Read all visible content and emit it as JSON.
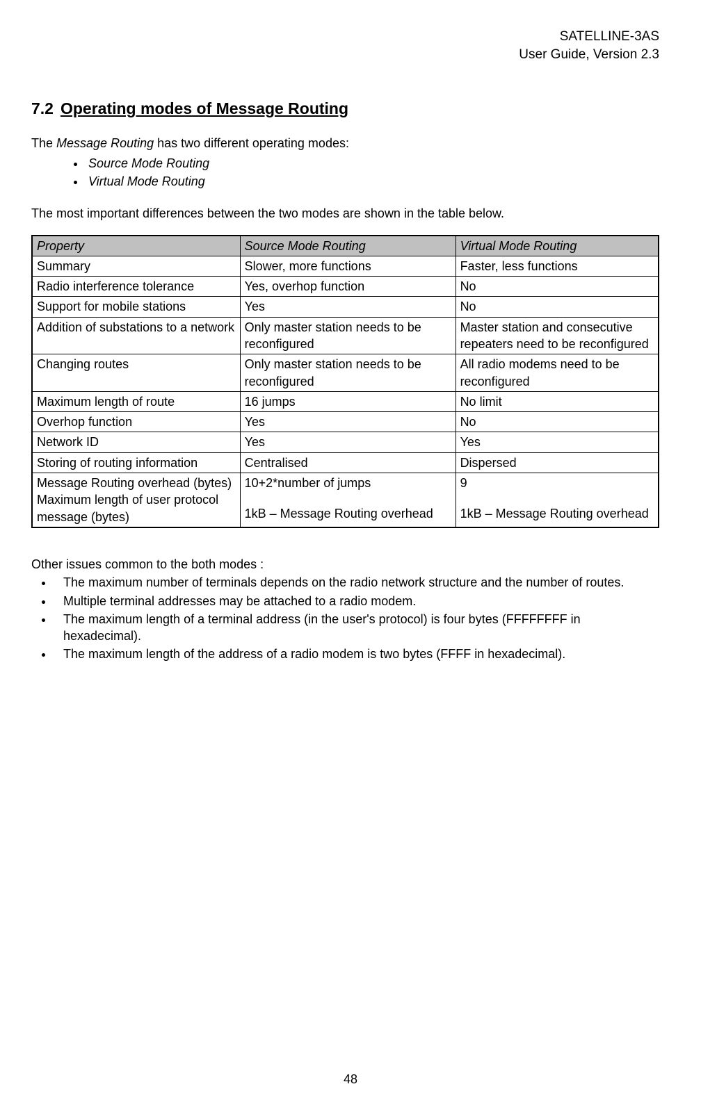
{
  "header": {
    "product": "SATELLINE-3AS",
    "guide": "User Guide, Version 2.3"
  },
  "section": {
    "number": "7.2",
    "title": "Operating modes of Message Routing"
  },
  "intro": {
    "prefix": "The ",
    "italic": "Message Routing",
    "suffix": " has two different operating modes:"
  },
  "modes": [
    "Source Mode Routing",
    "Virtual Mode Routing"
  ],
  "between_text": "The most important differences between the two modes are shown in the table below.",
  "table": {
    "headers": [
      "Property",
      "Source Mode Routing",
      "Virtual Mode Routing"
    ],
    "rows": [
      [
        "Summary",
        "Slower, more functions",
        "Faster, less functions"
      ],
      [
        "Radio interference tolerance",
        "Yes, overhop function",
        "No"
      ],
      [
        "Support for mobile stations",
        "Yes",
        "No"
      ],
      [
        "Addition of substations to a network",
        "Only master station needs to be reconfigured",
        "Master station and consecutive repeaters need to be reconfigured"
      ],
      [
        "Changing routes",
        "Only master station needs to be reconfigured",
        "All radio modems need to be reconfigured"
      ],
      [
        "Maximum length of route",
        "16 jumps",
        "No limit"
      ],
      [
        "Overhop function",
        "Yes",
        "No"
      ],
      [
        "Network ID",
        "Yes",
        "Yes"
      ],
      [
        "Storing of routing information",
        "Centralised",
        "Dispersed"
      ]
    ],
    "lastrow": {
      "c1a": "Message Routing overhead (bytes)",
      "c1b": "Maximum length of user protocol message (bytes)",
      "c2a": "10+2*number of jumps",
      "c2b": "1kB – Message Routing overhead",
      "c3a": "9",
      "c3b": "1kB – Message Routing overhead"
    }
  },
  "other_intro": "Other issues common to the both modes :",
  "other_issues": [
    "The maximum number of terminals depends on the radio network structure and the number of routes.",
    "Multiple terminal addresses may be attached to a radio modem.",
    "The maximum length of a terminal address (in the user's protocol) is four bytes (FFFFFFFF in hexadecimal).",
    "The maximum length of the address of a radio modem is two bytes (FFFF in hexadecimal)."
  ],
  "page_number": "48"
}
